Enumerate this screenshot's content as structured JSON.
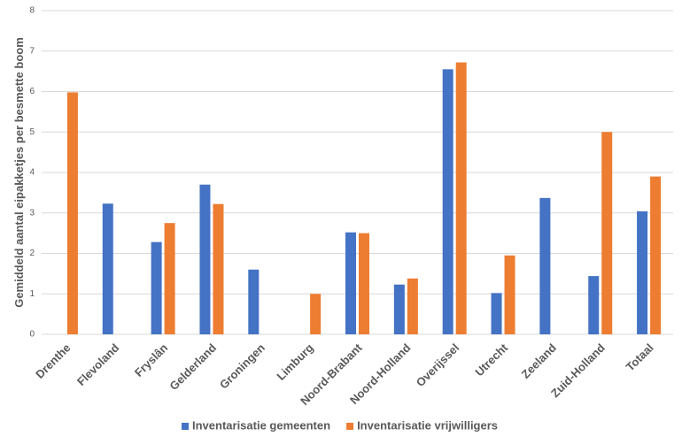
{
  "chart_data": {
    "type": "bar",
    "y_label": "Gemiddeld aantal eipakketjes per besmette boom",
    "categories": [
      "Drenthe",
      "Flevoland",
      "Fryslân",
      "Gelderland",
      "Groningen",
      "Limburg",
      "Noord-Brabant",
      "Noord-Holland",
      "Overijssel",
      "Utrecht",
      "Zeeland",
      "Zuid-Holland",
      "Totaal"
    ],
    "series": [
      {
        "name": "Inventarisatie gemeenten",
        "color": "#4472c4",
        "values": [
          null,
          3.23,
          2.28,
          3.7,
          1.6,
          null,
          2.52,
          1.23,
          6.55,
          1.02,
          3.37,
          1.44,
          3.04
        ]
      },
      {
        "name": "Inventarisatie vrijwilligers",
        "color": "#ed7d31",
        "values": [
          5.98,
          null,
          2.75,
          3.22,
          null,
          1.0,
          2.5,
          1.38,
          6.72,
          1.95,
          null,
          5.0,
          3.9
        ]
      }
    ],
    "ylim": [
      0,
      8
    ],
    "yticks": [
      0,
      1,
      2,
      3,
      4,
      5,
      6,
      7,
      8
    ],
    "grid": true,
    "legend": "bottom"
  }
}
